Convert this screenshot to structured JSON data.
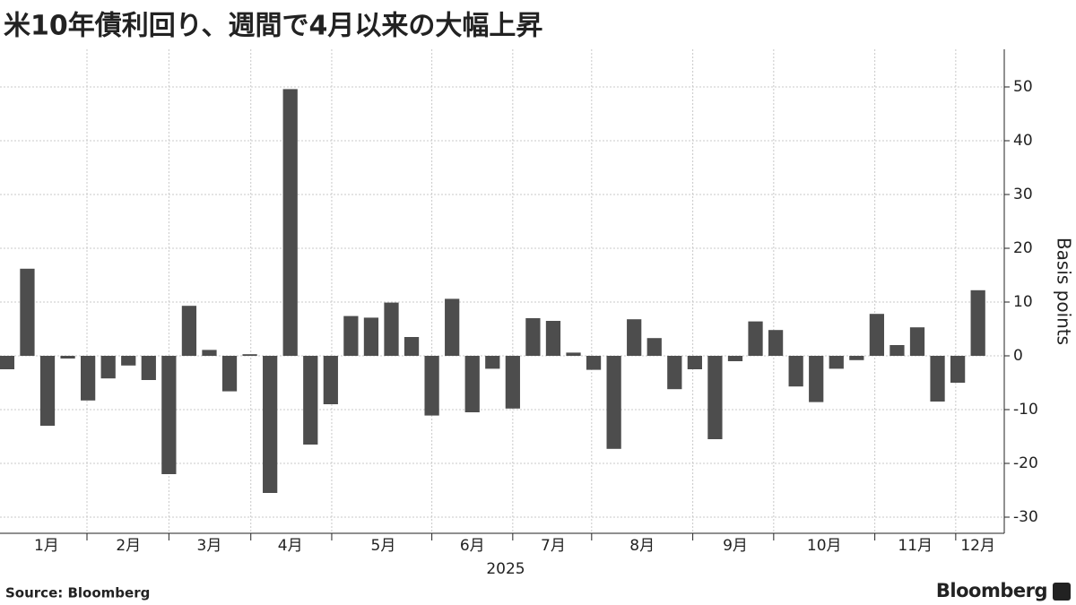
{
  "chart_data": {
    "type": "bar",
    "title": "米10年債利回り、週間で4月以来の大幅上昇",
    "y_label": "Basis points",
    "x_label": "2025",
    "source": "Source: Bloomberg",
    "brand": "Bloomberg",
    "color": "#4d4d4d",
    "values": [
      -2.5,
      16.2,
      -13,
      -0.5,
      -8.3,
      -4.2,
      -1.8,
      -4.5,
      -22,
      9.3,
      1.1,
      -6.6,
      0.3,
      -25.5,
      49.6,
      -16.5,
      -9,
      7.4,
      7.1,
      9.9,
      3.5,
      -11.1,
      10.6,
      -10.5,
      -2.4,
      -9.8,
      7,
      6.5,
      0.6,
      -2.6,
      -17.3,
      6.8,
      3.3,
      -6.2,
      -2.5,
      -15.5,
      -1,
      6.4,
      4.8,
      -5.7,
      -8.6,
      -2.4,
      -0.8,
      7.8,
      2,
      5.3,
      -8.5,
      -5,
      12.2
    ],
    "xlim": [
      -0.35,
      49.3
    ],
    "xgrid": [
      3.95,
      8,
      12.05,
      16.05,
      21,
      25,
      28.9,
      33.9,
      37.9,
      42.9,
      46.9
    ],
    "xticks": [
      {
        "value": 1.95,
        "label": "1月"
      },
      {
        "value": 6,
        "label": "2月"
      },
      {
        "value": 10,
        "label": "3月"
      },
      {
        "value": 14,
        "label": "4月"
      },
      {
        "value": 18.6,
        "label": "5月"
      },
      {
        "value": 23,
        "label": "6月"
      },
      {
        "value": 27,
        "label": "7月"
      },
      {
        "value": 31.4,
        "label": "8月"
      },
      {
        "value": 36,
        "label": "9月"
      },
      {
        "value": 40.4,
        "label": "10月"
      },
      {
        "value": 44.9,
        "label": "11月"
      },
      {
        "value": 48,
        "label": "12月"
      }
    ],
    "ylim": [
      -33,
      57
    ],
    "yticks": [
      -30,
      -20,
      -10,
      0,
      10,
      20,
      30,
      40,
      50
    ],
    "grid": true
  }
}
